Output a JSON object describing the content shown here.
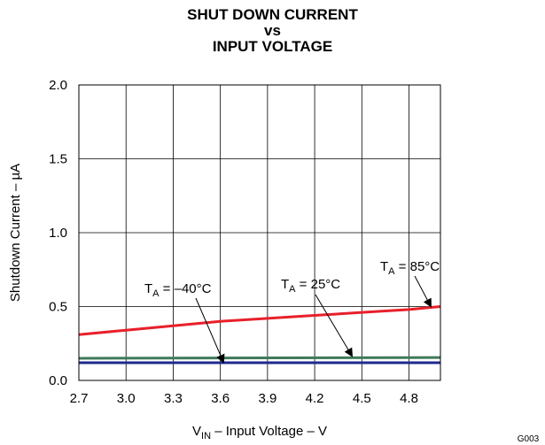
{
  "titles": {
    "line1": "SHUT DOWN CURRENT",
    "line2": "vs",
    "line3": "INPUT VOLTAGE"
  },
  "figure_id": "G003",
  "chart_data": {
    "type": "line",
    "title": "SHUT DOWN CURRENT vs INPUT VOLTAGE",
    "xlabel": {
      "main": "V",
      "sub": "IN",
      "rest": " – Input Voltage – V"
    },
    "ylabel": "Shutdown Current – µA",
    "xlim": [
      2.7,
      5.0
    ],
    "ylim": [
      0.0,
      2.0
    ],
    "xticks": [
      "2.7",
      "3.0",
      "3.3",
      "3.6",
      "3.9",
      "4.2",
      "4.5",
      "4.8"
    ],
    "xtick_values": [
      2.7,
      3.0,
      3.3,
      3.6,
      3.9,
      4.2,
      4.5,
      4.8
    ],
    "yticks": [
      "0.0",
      "0.5",
      "1.0",
      "1.5",
      "2.0"
    ],
    "ytick_values": [
      0.0,
      0.5,
      1.0,
      1.5,
      2.0
    ],
    "grid": true,
    "series": [
      {
        "name": "T_A = 85°C",
        "color": "#e8202a",
        "x": [
          2.7,
          3.0,
          3.3,
          3.6,
          3.9,
          4.2,
          4.5,
          4.8,
          5.0
        ],
        "y": [
          0.31,
          0.34,
          0.37,
          0.4,
          0.42,
          0.44,
          0.46,
          0.48,
          0.5
        ]
      },
      {
        "name": "T_A = 25°C",
        "color": "#3e7a5a",
        "x": [
          2.7,
          5.0
        ],
        "y": [
          0.15,
          0.155
        ]
      },
      {
        "name": "T_A = –40°C",
        "color": "#1f2a8c",
        "x": [
          2.7,
          5.0
        ],
        "y": [
          0.12,
          0.12
        ]
      }
    ],
    "annotations": [
      {
        "T": "T",
        "sub": "A",
        "text": " = –40°C"
      },
      {
        "T": "T",
        "sub": "A",
        "text": " = 25°C"
      },
      {
        "T": "T",
        "sub": "A",
        "text": " = 85°C"
      }
    ]
  }
}
